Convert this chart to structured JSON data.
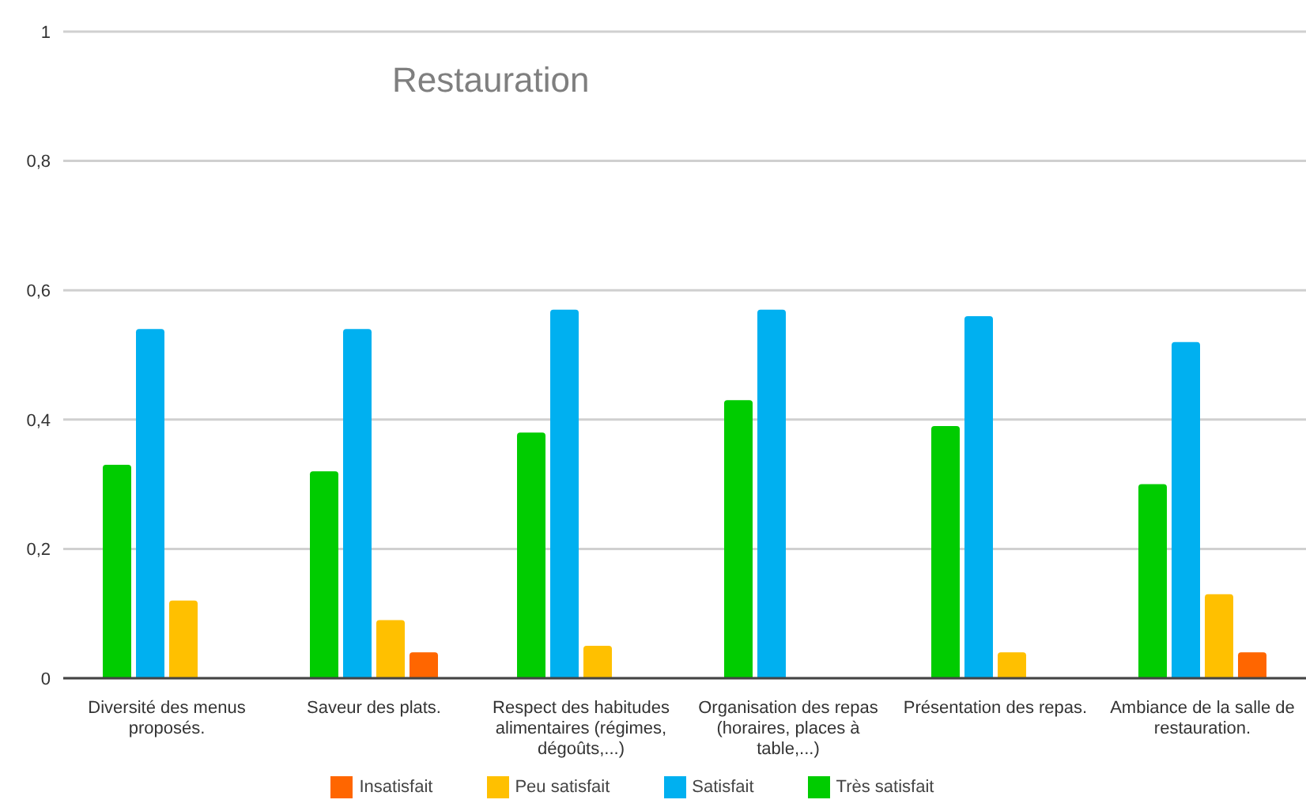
{
  "chart_data": {
    "type": "bar",
    "title": "Restauration",
    "categories": [
      "Diversité des menus proposés.",
      "Saveur des plats.",
      "Respect des habitudes alimentaires (régimes, dégoûts,...)",
      "Organisation des repas (horaires, places à table,...)",
      "Présentation des repas.",
      "Ambiance de la salle de restauration."
    ],
    "series": [
      {
        "name": "Très satisfait",
        "color": "#00cc00",
        "values": [
          0.33,
          0.32,
          0.38,
          0.43,
          0.39,
          0.3
        ]
      },
      {
        "name": "Satisfait",
        "color": "#00b0f0",
        "values": [
          0.54,
          0.54,
          0.57,
          0.57,
          0.56,
          0.52
        ]
      },
      {
        "name": "Peu satisfait",
        "color": "#ffc000",
        "values": [
          0.12,
          0.09,
          0.05,
          null,
          0.04,
          0.13
        ]
      },
      {
        "name": "Insatisfait",
        "color": "#ff6600",
        "values": [
          null,
          0.04,
          null,
          null,
          null,
          0.04
        ]
      }
    ],
    "ylim": [
      0,
      1
    ],
    "yticks": [
      0,
      {
        "value": 0.2,
        "label": "0,2"
      },
      {
        "value": 0.4,
        "label": "0,4"
      },
      {
        "value": 0.6,
        "label": "0,6"
      },
      {
        "value": 0.8,
        "label": "0,8"
      },
      1
    ],
    "grid": "y",
    "legend": "bottom"
  }
}
